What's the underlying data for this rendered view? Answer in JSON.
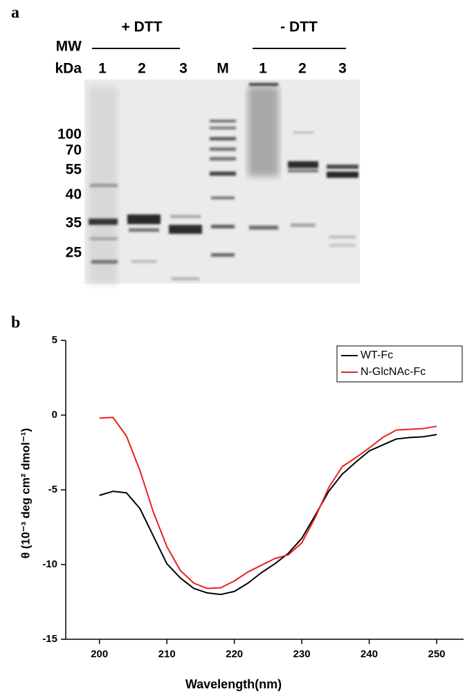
{
  "panel_a": {
    "label": "a",
    "conditions": [
      "+ DTT",
      "- DTT"
    ],
    "mw_header": [
      "MW",
      "kDa"
    ],
    "lanes": [
      "1",
      "2",
      "3",
      "M",
      "1",
      "2",
      "3"
    ],
    "mw_markers": [
      100,
      70,
      55,
      40,
      35,
      25
    ]
  },
  "chart_data": {
    "type": "line",
    "label": "b",
    "x_label": "Wavelength(nm)",
    "y_label": "θ (10⁻³ deg cm² dmol⁻¹)",
    "x": [
      200,
      202,
      204,
      206,
      208,
      210,
      212,
      214,
      216,
      218,
      220,
      222,
      224,
      226,
      228,
      230,
      232,
      234,
      236,
      238,
      240,
      242,
      244,
      246,
      248,
      250
    ],
    "series": [
      {
        "name": "WT-Fc",
        "color": "#000000",
        "values": [
          -5.37,
          -5.1,
          -5.2,
          -6.25,
          -8.1,
          -9.95,
          -10.9,
          -11.6,
          -11.9,
          -12.0,
          -11.8,
          -11.25,
          -10.55,
          -9.95,
          -9.25,
          -8.25,
          -6.7,
          -5.1,
          -3.95,
          -3.15,
          -2.4,
          -2.0,
          -1.6,
          -1.5,
          -1.45,
          -1.3
        ]
      },
      {
        "name": "N-GlcNAc-Fc",
        "color": "#e8201c",
        "values": [
          -0.2,
          -0.15,
          -1.4,
          -3.7,
          -6.5,
          -8.8,
          -10.4,
          -11.25,
          -11.6,
          -11.55,
          -11.1,
          -10.5,
          -10.05,
          -9.6,
          -9.35,
          -8.55,
          -6.85,
          -4.85,
          -3.45,
          -2.85,
          -2.2,
          -1.5,
          -1.0,
          -0.95,
          -0.9,
          -0.75
        ]
      }
    ],
    "xlim": [
      195,
      254
    ],
    "ylim": [
      -15,
      5
    ],
    "xticks": [
      200,
      210,
      220,
      230,
      240,
      250
    ],
    "yticks": [
      5,
      0,
      -5,
      -10,
      -15
    ],
    "legend": "top-right"
  }
}
